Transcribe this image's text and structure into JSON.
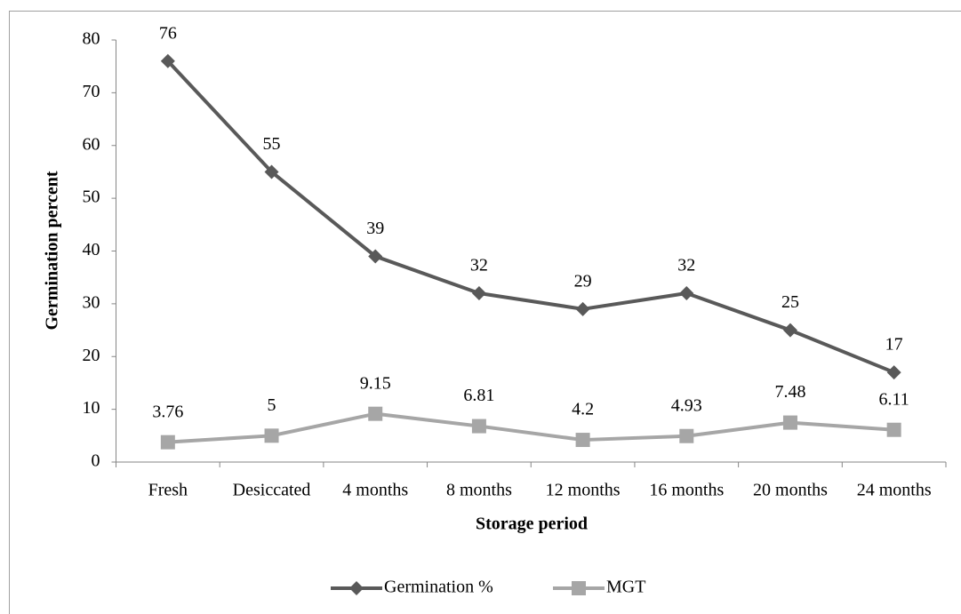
{
  "chart_data": {
    "type": "line",
    "x_label": "Storage period",
    "y_label": "Germination percent",
    "categories": [
      "Fresh",
      "Desiccated",
      "4 months",
      "8 months",
      "12 months",
      "16 months",
      "20 months",
      "24 months"
    ],
    "series": [
      {
        "name": "Germination %",
        "color": "#595959",
        "marker": "diamond",
        "values": [
          76,
          55,
          39,
          32,
          29,
          32,
          25,
          17
        ]
      },
      {
        "name": "MGT",
        "color": "#a6a6a6",
        "marker": "square",
        "values": [
          3.76,
          5,
          9.15,
          6.81,
          4.2,
          4.93,
          7.48,
          6.11
        ]
      }
    ],
    "ylim": [
      0,
      80
    ],
    "yticks": [
      0,
      10,
      20,
      30,
      40,
      50,
      60,
      70,
      80
    ],
    "grid": false,
    "legend": "bottom",
    "data_labels": true
  }
}
